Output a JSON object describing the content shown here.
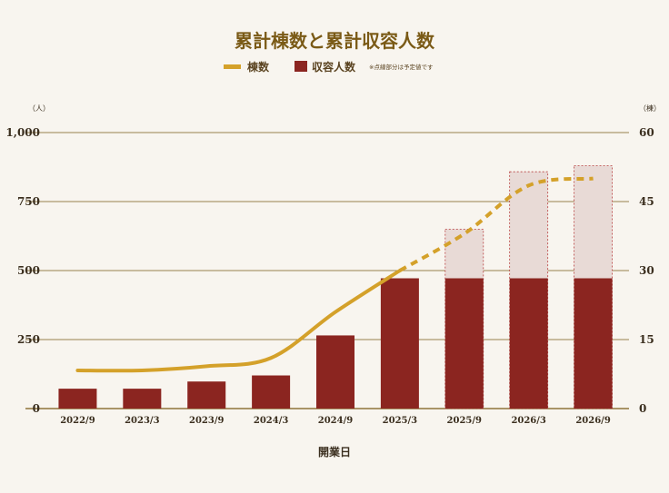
{
  "chart_data": {
    "type": "bar",
    "title": "累計棟数と累計収容人数",
    "xlabel": "開業日",
    "y_left_unit": "（人）",
    "y_right_unit": "（棟）",
    "categories": [
      "2022/9",
      "2023/3",
      "2023/9",
      "2024/3",
      "2024/9",
      "2025/3",
      "2025/9",
      "2026/3",
      "2026/9"
    ],
    "y_left": {
      "ylim": [
        0,
        1000
      ],
      "ticks": [
        "0",
        "250",
        "500",
        "750",
        "1,000"
      ],
      "tick_values": [
        0,
        250,
        500,
        750,
        1000
      ]
    },
    "y_right": {
      "ylim": [
        0,
        60
      ],
      "ticks": [
        "0",
        "15",
        "30",
        "45",
        "60"
      ],
      "tick_values": [
        0,
        15,
        30,
        45,
        60
      ]
    },
    "grid": true,
    "legend": {
      "position": "top-center",
      "line_label": "棟数",
      "bar_label": "収容人数",
      "note": "※点線部分は予定値です"
    },
    "series": [
      {
        "name": "収容人数",
        "type": "bar",
        "axis": "left",
        "values": [
          72,
          72,
          98,
          120,
          265,
          472,
          472,
          472,
          472
        ],
        "planned_totals": [
          null,
          null,
          null,
          null,
          null,
          null,
          650,
          858,
          880
        ]
      },
      {
        "name": "棟数",
        "type": "line",
        "axis": "right",
        "values": [
          8.3,
          8.3,
          9.2,
          11,
          21,
          30,
          38,
          48.5,
          50
        ],
        "planned_from_index": 5
      }
    ],
    "colors": {
      "bar": "#8b2520",
      "bar_planned_fill": "#e8dad6",
      "bar_planned_stroke": "#b84040",
      "line": "#d4a12a",
      "grid": "#7a5a16",
      "title": "#7a5a16"
    }
  }
}
